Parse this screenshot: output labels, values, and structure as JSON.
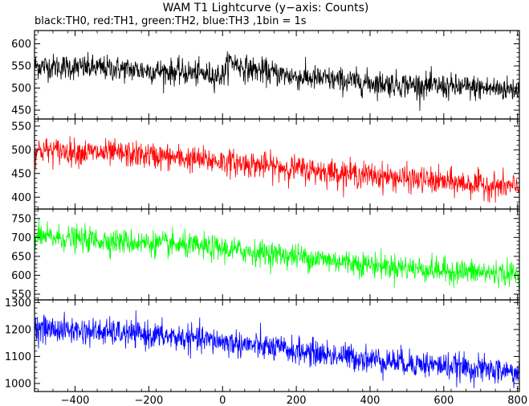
{
  "title": "WAM T1 Lightcurve (y−axis: Counts)",
  "subtitle": "black:TH0, red:TH1, green:TH2, blue:TH3 ,1bin = 1s",
  "chart_data": {
    "type": "line",
    "title": "WAM T1 Lightcurve (y−axis: Counts)",
    "subtitle": "black:TH0, red:TH1, green:TH2, blue:TH3 ,1bin = 1s",
    "xlabel": "",
    "ylabel": "",
    "xlim": [
      -510,
      805
    ],
    "x_ticks": [
      -400,
      -200,
      0,
      200,
      400,
      600,
      800
    ],
    "x_tick_labels": [
      "−400",
      "−200",
      "0",
      "200",
      "400",
      "600",
      "800"
    ],
    "x_step": 1,
    "grid": false,
    "panels": [
      {
        "series": "TH0",
        "color": "#000000",
        "ylim": [
          430,
          630
        ],
        "y_ticks": [
          450,
          500,
          550,
          600
        ],
        "y_tick_labels": [
          "450",
          "500",
          "550",
          "600"
        ],
        "trend": [
          [
            -510,
            550
          ],
          [
            -300,
            544
          ],
          [
            -100,
            535
          ],
          [
            0,
            528
          ],
          [
            20,
            562
          ],
          [
            60,
            545
          ],
          [
            200,
            525
          ],
          [
            400,
            512
          ],
          [
            600,
            503
          ],
          [
            805,
            497
          ]
        ],
        "noise_amplitude": 26
      },
      {
        "series": "TH1",
        "color": "#ff0000",
        "ylim": [
          375,
          565
        ],
        "y_ticks": [
          400,
          450,
          500,
          550
        ],
        "y_tick_labels": [
          "400",
          "450",
          "500",
          "550"
        ],
        "trend": [
          [
            -510,
            500
          ],
          [
            -200,
            488
          ],
          [
            0,
            475
          ],
          [
            200,
            460
          ],
          [
            400,
            446
          ],
          [
            600,
            432
          ],
          [
            805,
            420
          ]
        ],
        "noise_amplitude": 25
      },
      {
        "series": "TH2",
        "color": "#00ff00",
        "ylim": [
          535,
          775
        ],
        "y_ticks": [
          550,
          600,
          650,
          700,
          750
        ],
        "y_tick_labels": [
          "550",
          "600",
          "650",
          "700",
          "750"
        ],
        "trend": [
          [
            -510,
            702
          ],
          [
            -200,
            685
          ],
          [
            0,
            670
          ],
          [
            200,
            650
          ],
          [
            400,
            628
          ],
          [
            600,
            612
          ],
          [
            805,
            602
          ]
        ],
        "noise_amplitude": 30
      },
      {
        "series": "TH3",
        "color": "#0000ff",
        "ylim": [
          970,
          1310
        ],
        "y_ticks": [
          1000,
          1100,
          1200,
          1300
        ],
        "y_tick_labels": [
          "1000",
          "1100",
          "1200",
          "1300"
        ],
        "trend": [
          [
            -510,
            1205
          ],
          [
            -200,
            1180
          ],
          [
            0,
            1155
          ],
          [
            200,
            1120
          ],
          [
            400,
            1090
          ],
          [
            600,
            1065
          ],
          [
            805,
            1040
          ]
        ],
        "noise_amplitude": 45
      }
    ]
  }
}
